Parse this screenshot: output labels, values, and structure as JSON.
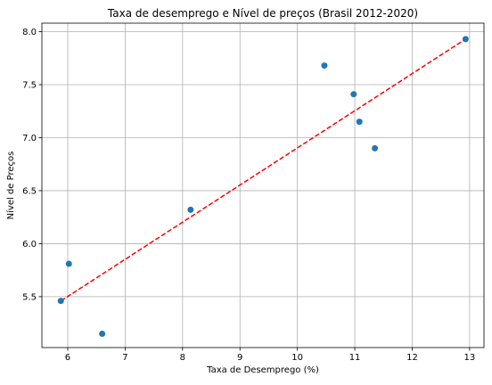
{
  "chart_data": {
    "type": "scatter",
    "title": "Taxa de desemprego e Nível de preços (Brasil 2012-2020)",
    "xlabel": "Taxa de Desemprego (%)",
    "ylabel": "Nível de Preços",
    "xlim": [
      5.55,
      13.25
    ],
    "ylim": [
      5.02,
      8.08
    ],
    "xticks": [
      6,
      7,
      8,
      9,
      10,
      11,
      12,
      13
    ],
    "yticks": [
      5.5,
      6.0,
      6.5,
      7.0,
      7.5,
      8.0
    ],
    "xtick_labels": [
      "6",
      "7",
      "8",
      "9",
      "10",
      "11",
      "12",
      "13"
    ],
    "ytick_labels": [
      "5.5",
      "6.0",
      "6.5",
      "7.0",
      "7.5",
      "8.0"
    ],
    "grid": true,
    "series": [
      {
        "type": "scatter",
        "color": "#1f77b4",
        "points": [
          {
            "x": 5.88,
            "y": 5.46
          },
          {
            "x": 6.02,
            "y": 5.81
          },
          {
            "x": 6.6,
            "y": 5.15
          },
          {
            "x": 8.14,
            "y": 6.32
          },
          {
            "x": 10.47,
            "y": 7.68
          },
          {
            "x": 10.98,
            "y": 7.41
          },
          {
            "x": 11.08,
            "y": 7.15
          },
          {
            "x": 11.35,
            "y": 6.9
          },
          {
            "x": 12.93,
            "y": 7.93
          }
        ]
      },
      {
        "type": "line",
        "style": "dashed",
        "color": "#ff0000",
        "points": [
          {
            "x": 5.88,
            "y": 5.46
          },
          {
            "x": 12.93,
            "y": 7.93
          }
        ]
      }
    ]
  }
}
